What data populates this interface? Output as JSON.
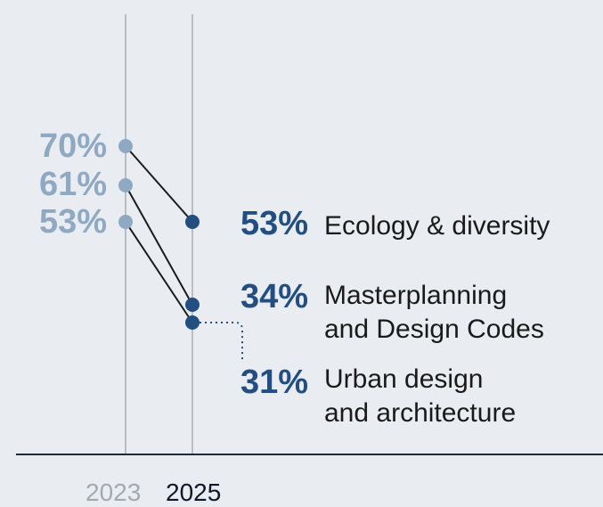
{
  "chart_data": {
    "type": "slope",
    "x": [
      "2023",
      "2025"
    ],
    "series": [
      {
        "name": "Ecology & diversity",
        "label_lines": [
          "Ecology & diversity"
        ],
        "values": [
          70,
          53
        ],
        "labels": [
          "70%",
          "53%"
        ]
      },
      {
        "name": "Masterplanning and Design Codes",
        "label_lines": [
          "Masterplanning",
          "and Design Codes"
        ],
        "values": [
          61,
          34
        ],
        "labels": [
          "61%",
          "34%"
        ]
      },
      {
        "name": "Urban design and architecture",
        "label_lines": [
          "Urban design",
          "and architecture"
        ],
        "values": [
          53,
          31
        ],
        "labels": [
          "53%",
          "31%"
        ]
      }
    ],
    "title": "",
    "xlabel": "",
    "ylabel": "",
    "unit": "%",
    "colors": {
      "old": "#90a9c3",
      "new": "#234e80",
      "connector": "#1a1a1a",
      "gridline": "#b9bec4",
      "axis": "#1f2937",
      "year_old": "#a3a9b0",
      "year_new": "#111827"
    }
  }
}
